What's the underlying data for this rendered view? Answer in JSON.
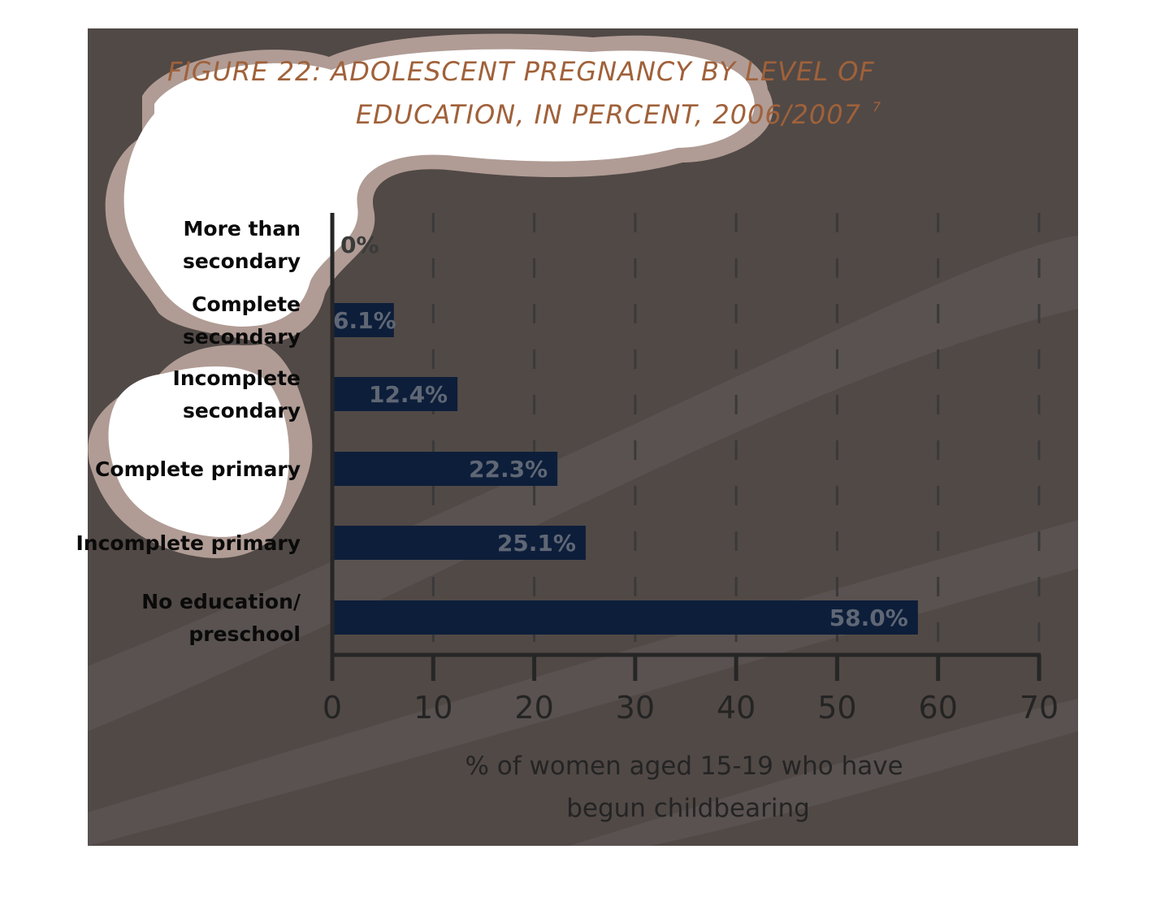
{
  "chart_data": {
    "type": "bar",
    "orientation": "horizontal",
    "title_lines": [
      "FIGURE 22: ADOLESCENT PREGNANCY BY LEVEL OF",
      "EDUCATION, IN PERCENT, 2006/2007"
    ],
    "title_footnote": "7",
    "categories": [
      [
        "More than",
        "secondary"
      ],
      [
        "Complete",
        "secondary"
      ],
      [
        "Incomplete",
        "secondary"
      ],
      [
        "Complete primary"
      ],
      [
        "Incomplete primary"
      ],
      [
        "No education/",
        "preschool"
      ]
    ],
    "values": [
      0,
      6.1,
      12.4,
      22.3,
      25.1,
      58.0
    ],
    "value_labels": [
      "0%",
      "6.1%",
      "12.4%",
      "22.3%",
      "25.1%",
      "58.0%"
    ],
    "xlabel_lines": [
      "% of women aged 15-19 who have",
      "begun childbearing"
    ],
    "xlim": [
      0,
      70
    ],
    "xticks": [
      0,
      10,
      20,
      30,
      40,
      50,
      60,
      70
    ],
    "grid": "vertical dashed",
    "colors": {
      "background": "#514946",
      "bar": "#0d1e3a",
      "value_text": "#5f6775",
      "title_text": "#a0613a",
      "axis_text": "#242424",
      "axis_line": "#262626",
      "blob_outline": "#b09c95",
      "blob_fill": "#ffffff"
    }
  }
}
